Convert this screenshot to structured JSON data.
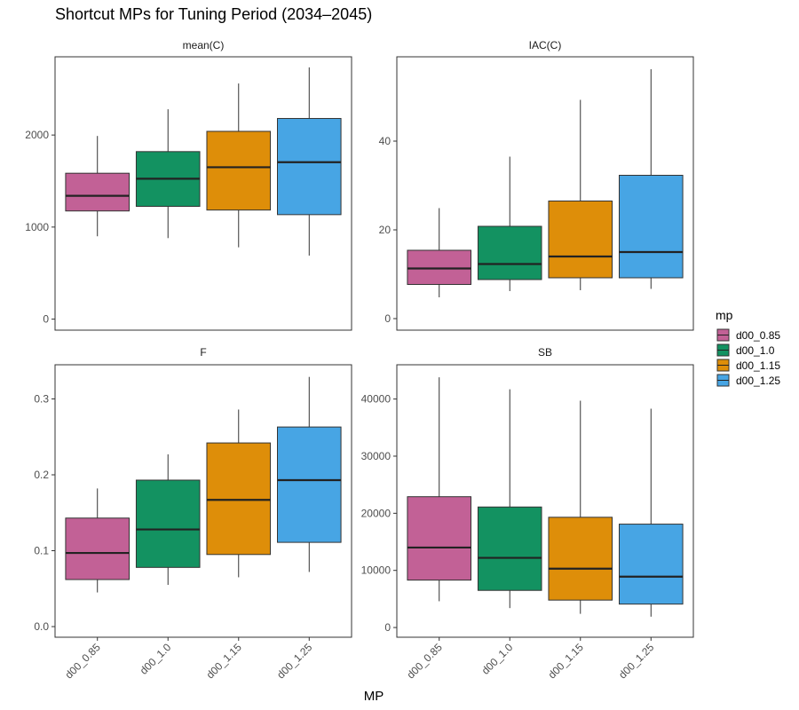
{
  "title": "Shortcut MPs for Tuning Period (2034–2045)",
  "xlabel": "MP",
  "legend": {
    "title": "mp",
    "items": [
      {
        "label": "d00_0.85",
        "color": "#C26196"
      },
      {
        "label": "d00_1.0",
        "color": "#139261"
      },
      {
        "label": "d00_1.15",
        "color": "#DE8E09"
      },
      {
        "label": "d00_1.25",
        "color": "#47A5E4"
      }
    ]
  },
  "chart_data": [
    {
      "type": "box",
      "panel": "mean(C)",
      "categories": [
        "d00_0.85",
        "d00_1.0",
        "d00_1.15",
        "d00_1.25"
      ],
      "ylim": [
        -120,
        2850
      ],
      "yticks": [
        0,
        1000,
        2000
      ],
      "ytick_labels": [
        "0",
        "1000",
        "2000"
      ],
      "boxes": [
        {
          "min": 900,
          "q1": 1175,
          "median": 1340,
          "q3": 1585,
          "max": 1990
        },
        {
          "min": 880,
          "q1": 1225,
          "median": 1525,
          "q3": 1820,
          "max": 2280
        },
        {
          "min": 780,
          "q1": 1185,
          "median": 1650,
          "q3": 2040,
          "max": 2560
        },
        {
          "min": 690,
          "q1": 1135,
          "median": 1705,
          "q3": 2180,
          "max": 2735
        }
      ]
    },
    {
      "type": "box",
      "panel": "IAC(C)",
      "categories": [
        "d00_0.85",
        "d00_1.0",
        "d00_1.15",
        "d00_1.25"
      ],
      "ylim": [
        -2.6,
        59
      ],
      "yticks": [
        0,
        20,
        40
      ],
      "ytick_labels": [
        "0",
        "20",
        "40"
      ],
      "boxes": [
        {
          "min": 4.8,
          "q1": 7.7,
          "median": 11.3,
          "q3": 15.4,
          "max": 24.9
        },
        {
          "min": 6.2,
          "q1": 8.8,
          "median": 12.3,
          "q3": 20.8,
          "max": 36.5
        },
        {
          "min": 6.4,
          "q1": 9.2,
          "median": 14.0,
          "q3": 26.5,
          "max": 49.3
        },
        {
          "min": 6.7,
          "q1": 9.2,
          "median": 15.0,
          "q3": 32.3,
          "max": 56.2
        }
      ]
    },
    {
      "type": "box",
      "panel": "F",
      "categories": [
        "d00_0.85",
        "d00_1.0",
        "d00_1.15",
        "d00_1.25"
      ],
      "ylim": [
        -0.014,
        0.345
      ],
      "yticks": [
        0.0,
        0.1,
        0.2,
        0.3
      ],
      "ytick_labels": [
        "0.0",
        "0.1",
        "0.2",
        "0.3"
      ],
      "boxes": [
        {
          "min": 0.045,
          "q1": 0.062,
          "median": 0.097,
          "q3": 0.143,
          "max": 0.182
        },
        {
          "min": 0.055,
          "q1": 0.078,
          "median": 0.128,
          "q3": 0.193,
          "max": 0.227
        },
        {
          "min": 0.065,
          "q1": 0.095,
          "median": 0.167,
          "q3": 0.242,
          "max": 0.286
        },
        {
          "min": 0.072,
          "q1": 0.111,
          "median": 0.193,
          "q3": 0.263,
          "max": 0.329
        }
      ]
    },
    {
      "type": "box",
      "panel": "SB",
      "categories": [
        "d00_0.85",
        "d00_1.0",
        "d00_1.15",
        "d00_1.25"
      ],
      "ylim": [
        -1700,
        46000
      ],
      "yticks": [
        0,
        10000,
        20000,
        30000,
        40000
      ],
      "ytick_labels": [
        "0",
        "10000",
        "20000",
        "30000",
        "40000"
      ],
      "boxes": [
        {
          "min": 4600,
          "q1": 8300,
          "median": 14000,
          "q3": 22900,
          "max": 43800
        },
        {
          "min": 3400,
          "q1": 6500,
          "median": 12200,
          "q3": 21100,
          "max": 41700
        },
        {
          "min": 2400,
          "q1": 4800,
          "median": 10300,
          "q3": 19300,
          "max": 39700
        },
        {
          "min": 1900,
          "q1": 4100,
          "median": 8900,
          "q3": 18100,
          "max": 38300
        }
      ]
    }
  ]
}
